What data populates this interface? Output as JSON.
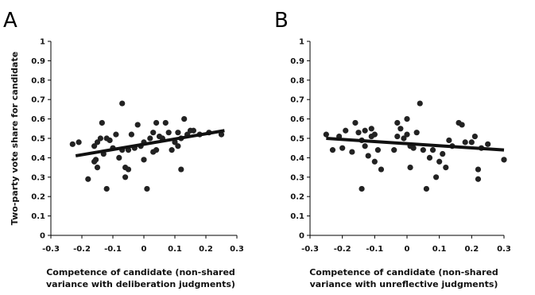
{
  "chart_data": [
    {
      "panel": "A",
      "type": "scatter",
      "ylabel": "Two-party vote share for candidate",
      "xlabel_lines": [
        "Competence of candidate (non-shared",
        "variance with deliberation judgments)"
      ],
      "xlim": [
        -0.3,
        0.3
      ],
      "ylim": [
        0,
        1
      ],
      "xticks": [
        "-0.3",
        "-0.2",
        "-0.1",
        "0",
        "0.1",
        "0.2",
        "0.3"
      ],
      "yticks": [
        "0",
        "0.1",
        "0.2",
        "0.3",
        "0.4",
        "0.5",
        "0.6",
        "0.7",
        "0.8",
        "0.9",
        "1"
      ],
      "points": [
        [
          -0.23,
          0.47
        ],
        [
          -0.21,
          0.48
        ],
        [
          -0.18,
          0.29
        ],
        [
          -0.16,
          0.38
        ],
        [
          -0.16,
          0.46
        ],
        [
          -0.155,
          0.39
        ],
        [
          -0.15,
          0.35
        ],
        [
          -0.15,
          0.48
        ],
        [
          -0.14,
          0.5
        ],
        [
          -0.135,
          0.58
        ],
        [
          -0.13,
          0.42
        ],
        [
          -0.12,
          0.24
        ],
        [
          -0.12,
          0.5
        ],
        [
          -0.11,
          0.49
        ],
        [
          -0.1,
          0.45
        ],
        [
          -0.09,
          0.52
        ],
        [
          -0.08,
          0.4
        ],
        [
          -0.07,
          0.44
        ],
        [
          -0.07,
          0.68
        ],
        [
          -0.06,
          0.35
        ],
        [
          -0.06,
          0.3
        ],
        [
          -0.05,
          0.34
        ],
        [
          -0.05,
          0.44
        ],
        [
          -0.04,
          0.52
        ],
        [
          -0.03,
          0.45
        ],
        [
          -0.02,
          0.57
        ],
        [
          -0.01,
          0.46
        ],
        [
          0.0,
          0.39
        ],
        [
          0.0,
          0.48
        ],
        [
          0.01,
          0.24
        ],
        [
          0.02,
          0.5
        ],
        [
          0.03,
          0.43
        ],
        [
          0.03,
          0.53
        ],
        [
          0.04,
          0.58
        ],
        [
          0.04,
          0.44
        ],
        [
          0.05,
          0.51
        ],
        [
          0.06,
          0.5
        ],
        [
          0.07,
          0.58
        ],
        [
          0.08,
          0.53
        ],
        [
          0.09,
          0.44
        ],
        [
          0.1,
          0.48
        ],
        [
          0.11,
          0.53
        ],
        [
          0.12,
          0.34
        ],
        [
          0.12,
          0.5
        ],
        [
          0.13,
          0.6
        ],
        [
          0.14,
          0.52
        ],
        [
          0.15,
          0.54
        ],
        [
          0.16,
          0.54
        ],
        [
          0.18,
          0.52
        ],
        [
          0.21,
          0.53
        ],
        [
          0.25,
          0.52
        ],
        [
          0.11,
          0.46
        ]
      ],
      "fit_line": {
        "x": [
          -0.22,
          0.26
        ],
        "y": [
          0.41,
          0.54
        ]
      }
    },
    {
      "panel": "B",
      "type": "scatter",
      "ylabel": "",
      "xlabel_lines": [
        "Competence of candidate (non-shared",
        "variance with unreflective judgments)"
      ],
      "xlim": [
        -0.3,
        0.3
      ],
      "ylim": [
        0,
        1
      ],
      "xticks": [
        "-0.3",
        "-0.2",
        "-0.1",
        "0",
        "0.1",
        "0.2",
        "0.3"
      ],
      "yticks": [
        "0",
        "0.1",
        "0.2",
        "0.3",
        "0.4",
        "0.5",
        "0.6",
        "0.7",
        "0.8",
        "0.9",
        "1"
      ],
      "points": [
        [
          -0.25,
          0.52
        ],
        [
          -0.23,
          0.44
        ],
        [
          -0.21,
          0.51
        ],
        [
          -0.2,
          0.45
        ],
        [
          -0.19,
          0.54
        ],
        [
          -0.17,
          0.43
        ],
        [
          -0.16,
          0.58
        ],
        [
          -0.15,
          0.53
        ],
        [
          -0.14,
          0.49
        ],
        [
          -0.14,
          0.24
        ],
        [
          -0.13,
          0.54
        ],
        [
          -0.13,
          0.46
        ],
        [
          -0.12,
          0.41
        ],
        [
          -0.11,
          0.55
        ],
        [
          -0.11,
          0.51
        ],
        [
          -0.1,
          0.52
        ],
        [
          -0.1,
          0.38
        ],
        [
          -0.09,
          0.44
        ],
        [
          -0.08,
          0.34
        ],
        [
          -0.04,
          0.44
        ],
        [
          -0.03,
          0.58
        ],
        [
          -0.03,
          0.51
        ],
        [
          -0.02,
          0.55
        ],
        [
          -0.01,
          0.5
        ],
        [
          0.0,
          0.52
        ],
        [
          0.0,
          0.6
        ],
        [
          0.01,
          0.35
        ],
        [
          0.01,
          0.46
        ],
        [
          0.02,
          0.45
        ],
        [
          0.03,
          0.53
        ],
        [
          0.04,
          0.68
        ],
        [
          0.05,
          0.44
        ],
        [
          0.06,
          0.24
        ],
        [
          0.07,
          0.4
        ],
        [
          0.08,
          0.44
        ],
        [
          0.09,
          0.3
        ],
        [
          0.1,
          0.38
        ],
        [
          0.11,
          0.42
        ],
        [
          0.12,
          0.35
        ],
        [
          0.13,
          0.49
        ],
        [
          0.14,
          0.46
        ],
        [
          0.16,
          0.58
        ],
        [
          0.17,
          0.57
        ],
        [
          0.18,
          0.48
        ],
        [
          0.2,
          0.48
        ],
        [
          0.21,
          0.51
        ],
        [
          0.22,
          0.34
        ],
        [
          0.22,
          0.29
        ],
        [
          0.23,
          0.45
        ],
        [
          0.25,
          0.47
        ],
        [
          0.3,
          0.39
        ]
      ],
      "fit_line": {
        "x": [
          -0.25,
          0.3
        ],
        "y": [
          0.5,
          0.44
        ]
      }
    }
  ]
}
